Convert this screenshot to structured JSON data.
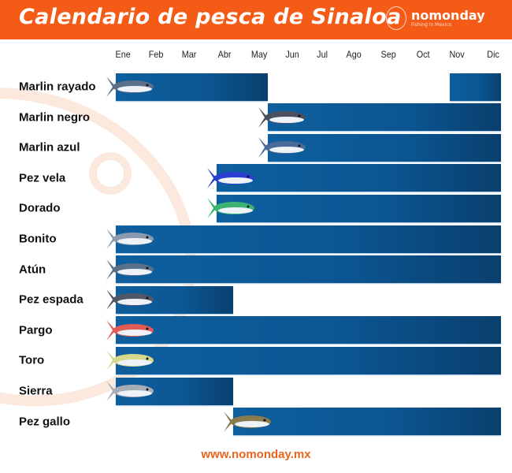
{
  "header": {
    "title": "Calendario de pesca de Sinaloa",
    "logo_name": "nomonday",
    "logo_tagline": "Fishing in Mexico"
  },
  "footer": {
    "url": "www.nomonday.mx"
  },
  "colors": {
    "header": "#f45b16",
    "bar": "#0b5592",
    "footer_text": "#e9651e"
  },
  "chart_data": {
    "type": "gantt",
    "months": [
      "Ene",
      "Feb",
      "Mar",
      "Abr",
      "May",
      "Jun",
      "Jul",
      "Ago",
      "Sep",
      "Oct",
      "Nov",
      "Dic"
    ],
    "rows": [
      {
        "name": "Marlin rayado",
        "fish_color": "#5b6f8a",
        "periods": [
          [
            "Ene",
            "May"
          ],
          [
            "Nov",
            "Dic"
          ]
        ]
      },
      {
        "name": "Marlin negro",
        "fish_color": "#4a5060",
        "periods": [
          [
            "Jun",
            "Dic"
          ]
        ]
      },
      {
        "name": "Marlin azul",
        "fish_color": "#4a6a9a",
        "periods": [
          [
            "Jun",
            "Dic"
          ]
        ]
      },
      {
        "name": "Pez vela",
        "fish_color": "#2a3fd0",
        "periods": [
          [
            "Abr",
            "Dic"
          ]
        ]
      },
      {
        "name": "Dorado",
        "fish_color": "#3cb371",
        "periods": [
          [
            "Abr",
            "Dic"
          ]
        ]
      },
      {
        "name": "Bonito",
        "fish_color": "#8a9bb0",
        "periods": [
          [
            "Ene",
            "Dic"
          ]
        ]
      },
      {
        "name": "Atún",
        "fish_color": "#5a6f8a",
        "periods": [
          [
            "Ene",
            "Dic"
          ]
        ]
      },
      {
        "name": "Pez espada",
        "fish_color": "#505868",
        "periods": [
          [
            "Ene",
            "Abr"
          ]
        ]
      },
      {
        "name": "Pargo",
        "fish_color": "#e25a55",
        "periods": [
          [
            "Ene",
            "Dic"
          ]
        ]
      },
      {
        "name": "Toro",
        "fish_color": "#d6d88a",
        "periods": [
          [
            "Ene",
            "Dic"
          ]
        ]
      },
      {
        "name": "Sierra",
        "fish_color": "#a8acb4",
        "periods": [
          [
            "Ene",
            "Abr"
          ]
        ]
      },
      {
        "name": "Pez gallo",
        "fish_color": "#8a7a50",
        "periods": [
          [
            "May",
            "Dic"
          ]
        ]
      }
    ]
  }
}
